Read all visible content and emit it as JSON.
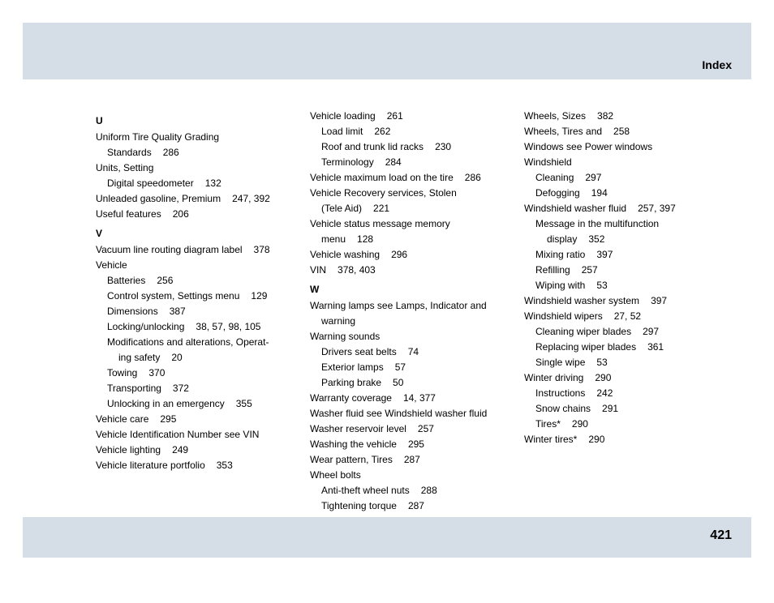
{
  "header": {
    "title": "Index"
  },
  "footer": {
    "page": "421"
  },
  "columns": [
    {
      "sections": [
        {
          "letter": "U",
          "entries": [
            {
              "text": "Uniform Tire Quality Grading",
              "pages": ""
            },
            {
              "text": "Standards",
              "pages": "286",
              "indent": 1
            },
            {
              "text": "Units, Setting",
              "pages": ""
            },
            {
              "text": "Digital speedometer",
              "pages": "132",
              "indent": 1
            },
            {
              "text": "Unleaded gasoline, Premium",
              "pages": "247, 392"
            },
            {
              "text": "Useful features",
              "pages": "206"
            }
          ]
        },
        {
          "letter": "V",
          "entries": [
            {
              "text": "Vacuum line routing diagram label",
              "pages": "378"
            },
            {
              "text": "Vehicle",
              "pages": ""
            },
            {
              "text": "Batteries",
              "pages": "256",
              "indent": 1
            },
            {
              "text": "Control system, Settings menu",
              "pages": "129",
              "indent": 1
            },
            {
              "text": "Dimensions",
              "pages": "387",
              "indent": 1
            },
            {
              "text": "Locking/unlocking",
              "pages": "38, 57, 98, 105",
              "indent": 1
            },
            {
              "text": "Modifications and alterations, Operat-",
              "pages": "",
              "indent": 1
            },
            {
              "text": "ing safety",
              "pages": "20",
              "indent": 2
            },
            {
              "text": "Towing",
              "pages": "370",
              "indent": 1
            },
            {
              "text": "Transporting",
              "pages": "372",
              "indent": 1
            },
            {
              "text": "Unlocking in an emergency",
              "pages": "355",
              "indent": 1
            },
            {
              "text": "Vehicle care",
              "pages": "295"
            },
            {
              "text": "Vehicle Identification Number see VIN",
              "pages": ""
            },
            {
              "text": "Vehicle lighting",
              "pages": "249"
            },
            {
              "text": "Vehicle literature portfolio",
              "pages": "353"
            }
          ]
        }
      ]
    },
    {
      "sections": [
        {
          "letter": "",
          "entries": [
            {
              "text": "Vehicle loading",
              "pages": "261"
            },
            {
              "text": "Load limit",
              "pages": "262",
              "indent": 1
            },
            {
              "text": "Roof and trunk lid racks",
              "pages": "230",
              "indent": 1
            },
            {
              "text": "Terminology",
              "pages": "284",
              "indent": 1
            },
            {
              "text": "Vehicle maximum load on the tire",
              "pages": "286"
            },
            {
              "text": "Vehicle Recovery services, Stolen",
              "pages": ""
            },
            {
              "text": "(Tele Aid)",
              "pages": "221",
              "indent": 1
            },
            {
              "text": "Vehicle status message memory",
              "pages": ""
            },
            {
              "text": "menu",
              "pages": "128",
              "indent": 1
            },
            {
              "text": "Vehicle washing",
              "pages": "296"
            },
            {
              "text": "VIN",
              "pages": "378, 403"
            }
          ]
        },
        {
          "letter": "W",
          "entries": [
            {
              "text": "Warning lamps see Lamps, Indicator and",
              "pages": ""
            },
            {
              "text": "warning",
              "pages": "",
              "indent": 1
            },
            {
              "text": "Warning sounds",
              "pages": ""
            },
            {
              "text": "Drivers seat belts",
              "pages": "74",
              "indent": 1
            },
            {
              "text": "Exterior lamps",
              "pages": "57",
              "indent": 1
            },
            {
              "text": "Parking brake",
              "pages": "50",
              "indent": 1
            },
            {
              "text": "Warranty coverage",
              "pages": "14, 377"
            },
            {
              "text": "Washer fluid see Windshield washer fluid",
              "pages": ""
            },
            {
              "text": "Washer reservoir level",
              "pages": "257"
            },
            {
              "text": "Washing the vehicle",
              "pages": "295"
            },
            {
              "text": "Wear pattern, Tires",
              "pages": "287"
            },
            {
              "text": "Wheel bolts",
              "pages": ""
            },
            {
              "text": "Anti-theft wheel nuts",
              "pages": "288",
              "indent": 1
            },
            {
              "text": "Tightening torque",
              "pages": "287",
              "indent": 1
            }
          ]
        }
      ]
    },
    {
      "sections": [
        {
          "letter": "",
          "entries": [
            {
              "text": "Wheels, Sizes",
              "pages": "382"
            },
            {
              "text": "Wheels, Tires and",
              "pages": "258"
            },
            {
              "text": "Windows see Power windows",
              "pages": ""
            },
            {
              "text": "Windshield",
              "pages": ""
            },
            {
              "text": "Cleaning",
              "pages": "297",
              "indent": 1
            },
            {
              "text": "Defogging",
              "pages": "194",
              "indent": 1
            },
            {
              "text": "Windshield washer fluid",
              "pages": "257, 397"
            },
            {
              "text": "Message in the multifunction",
              "pages": "",
              "indent": 1
            },
            {
              "text": "display",
              "pages": "352",
              "indent": 2
            },
            {
              "text": "Mixing ratio",
              "pages": "397",
              "indent": 1
            },
            {
              "text": "Refilling",
              "pages": "257",
              "indent": 1
            },
            {
              "text": "Wiping with",
              "pages": "53",
              "indent": 1
            },
            {
              "text": "Windshield washer system",
              "pages": "397"
            },
            {
              "text": "Windshield wipers",
              "pages": "27, 52"
            },
            {
              "text": "Cleaning wiper blades",
              "pages": "297",
              "indent": 1
            },
            {
              "text": "Replacing wiper blades",
              "pages": "361",
              "indent": 1
            },
            {
              "text": "Single wipe",
              "pages": "53",
              "indent": 1
            },
            {
              "text": "Winter driving",
              "pages": "290"
            },
            {
              "text": "Instructions",
              "pages": "242",
              "indent": 1
            },
            {
              "text": "Snow chains",
              "pages": "291",
              "indent": 1
            },
            {
              "text": "Tires*",
              "pages": "290",
              "indent": 1
            },
            {
              "text": "Winter tires*",
              "pages": "290"
            }
          ]
        }
      ]
    }
  ]
}
